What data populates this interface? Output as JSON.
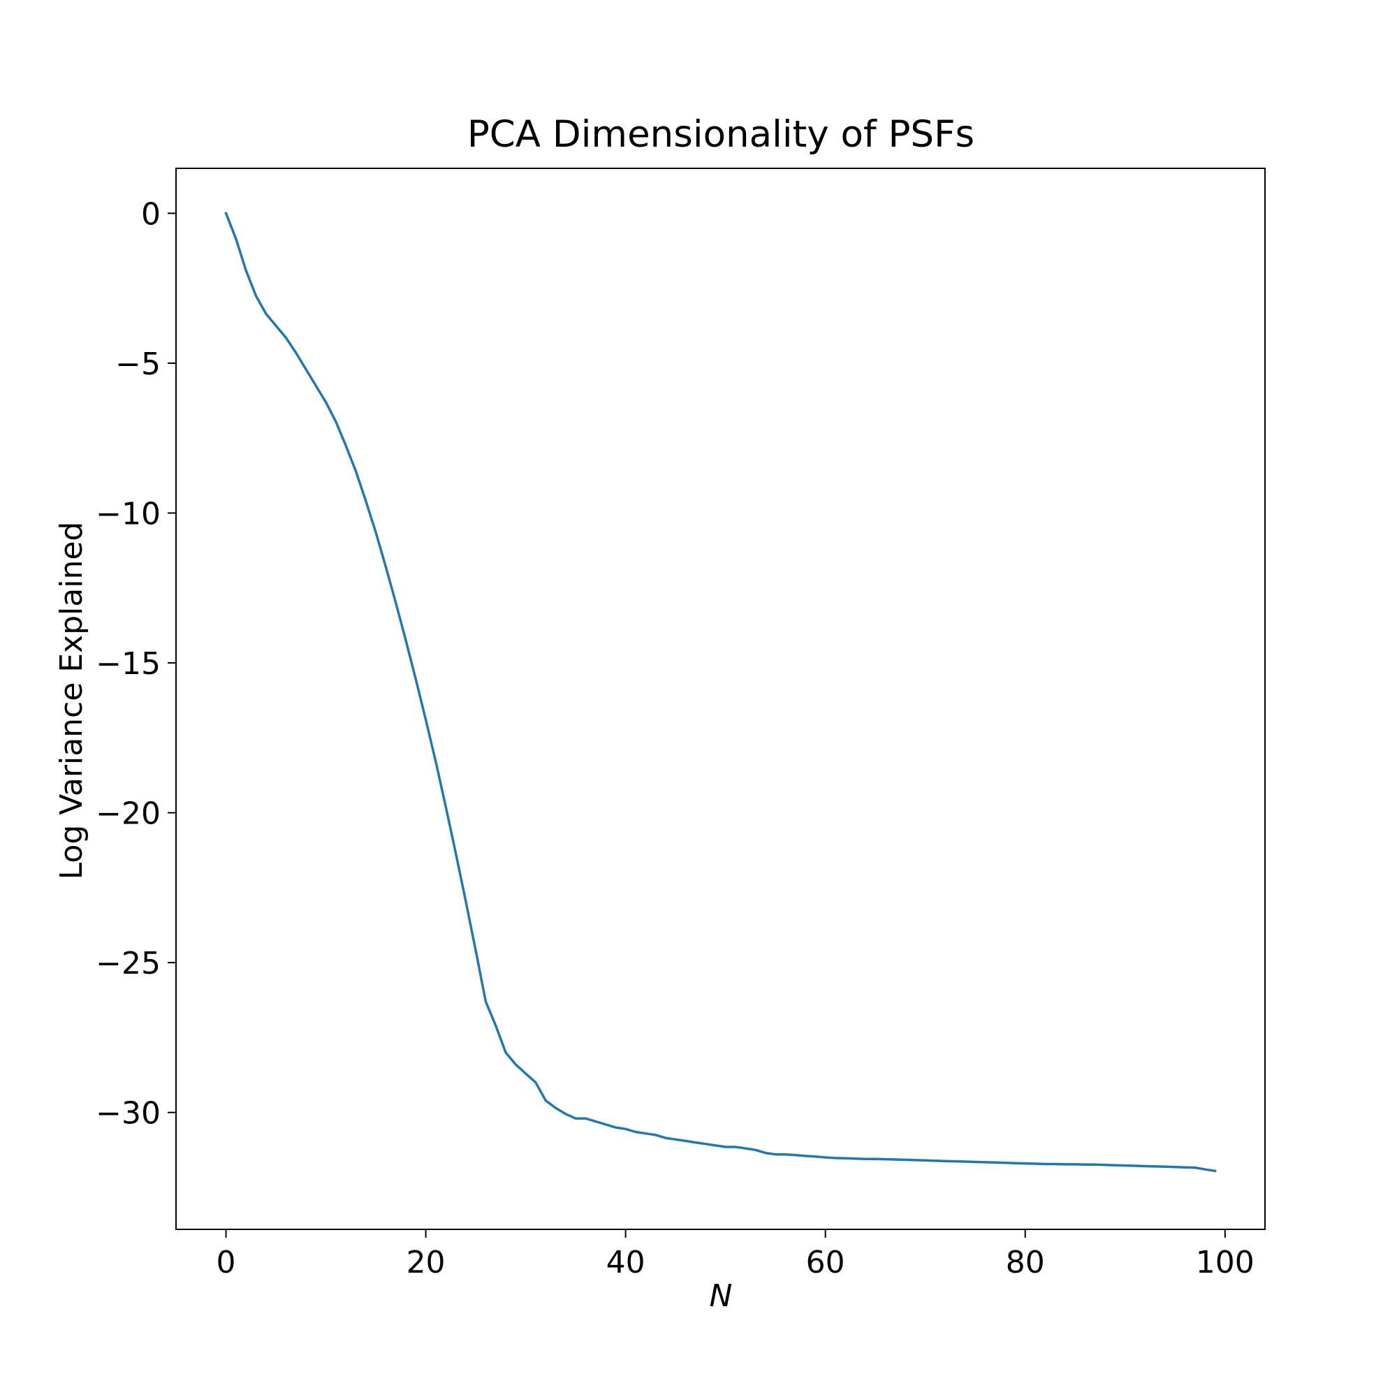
{
  "chart_data": {
    "type": "line",
    "title": "PCA Dimensionality of PSFs",
    "xlabel": "N",
    "ylabel": "Log Variance Explained",
    "xlim": [
      -5,
      104
    ],
    "ylim": [
      -33.9,
      1.5
    ],
    "xticks": [
      0,
      20,
      40,
      60,
      80,
      100
    ],
    "yticks": [
      0,
      -5,
      -10,
      -15,
      -20,
      -25,
      -30
    ],
    "xtick_labels": [
      "0",
      "20",
      "40",
      "60",
      "80",
      "100"
    ],
    "ytick_labels": [
      "0",
      "−5",
      "−10",
      "−15",
      "−20",
      "−25",
      "−30"
    ],
    "grid": false,
    "series": [
      {
        "color": "#1f77b4",
        "x": [
          0,
          1,
          2,
          3,
          4,
          5,
          6,
          7,
          8,
          9,
          10,
          11,
          12,
          13,
          14,
          15,
          16,
          17,
          18,
          19,
          20,
          21,
          22,
          23,
          24,
          25,
          26,
          27,
          28,
          29,
          30,
          31,
          32,
          33,
          34,
          35,
          36,
          37,
          38,
          39,
          40,
          41,
          42,
          43,
          44,
          45,
          46,
          47,
          48,
          49,
          50,
          51,
          52,
          53,
          54,
          55,
          56,
          57,
          58,
          59,
          60,
          61,
          62,
          63,
          64,
          65,
          66,
          67,
          68,
          69,
          70,
          71,
          72,
          73,
          74,
          75,
          76,
          77,
          78,
          79,
          80,
          81,
          82,
          83,
          84,
          85,
          86,
          87,
          88,
          89,
          90,
          91,
          92,
          93,
          94,
          95,
          96,
          97,
          98,
          99
        ],
        "y": [
          0.0,
          -0.85,
          -1.9,
          -2.75,
          -3.35,
          -3.75,
          -4.15,
          -4.65,
          -5.2,
          -5.75,
          -6.3,
          -6.95,
          -7.75,
          -8.6,
          -9.6,
          -10.65,
          -11.8,
          -13.0,
          -14.25,
          -15.55,
          -16.9,
          -18.3,
          -19.8,
          -21.35,
          -22.95,
          -24.6,
          -26.3,
          -27.1,
          -28.0,
          -28.4,
          -28.7,
          -29.0,
          -29.6,
          -29.85,
          -30.05,
          -30.2,
          -30.2,
          -30.3,
          -30.4,
          -30.5,
          -30.55,
          -30.65,
          -30.7,
          -30.75,
          -30.85,
          -30.9,
          -30.95,
          -31.0,
          -31.05,
          -31.1,
          -31.15,
          -31.15,
          -31.2,
          -31.25,
          -31.35,
          -31.4,
          -31.4,
          -31.42,
          -31.45,
          -31.47,
          -31.5,
          -31.52,
          -31.53,
          -31.54,
          -31.55,
          -31.55,
          -31.56,
          -31.57,
          -31.58,
          -31.59,
          -31.6,
          -31.61,
          -31.62,
          -31.63,
          -31.64,
          -31.65,
          -31.66,
          -31.67,
          -31.68,
          -31.69,
          -31.7,
          -31.71,
          -31.72,
          -31.72,
          -31.73,
          -31.73,
          -31.74,
          -31.74,
          -31.75,
          -31.76,
          -31.77,
          -31.78,
          -31.79,
          -31.8,
          -31.81,
          -31.82,
          -31.83,
          -31.84,
          -31.9,
          -31.95
        ]
      }
    ]
  }
}
